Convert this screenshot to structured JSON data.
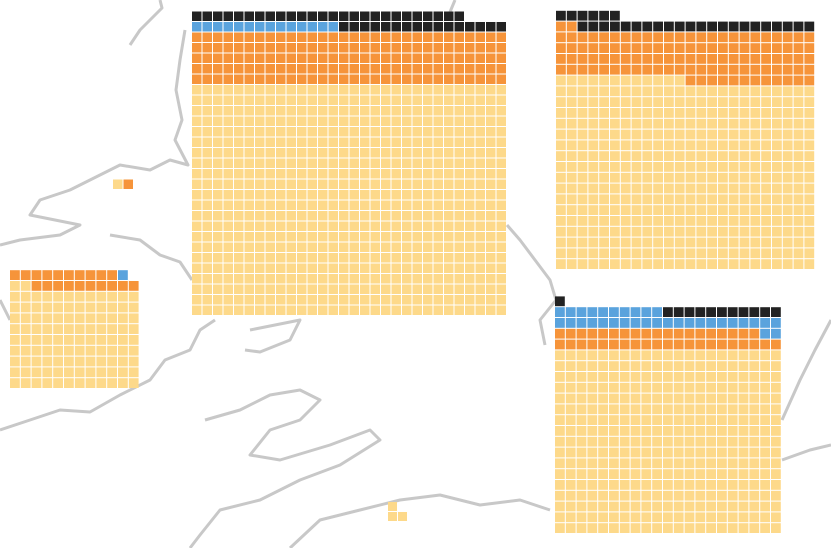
{
  "waffles": [
    {
      "counts": [
        660,
        150,
        14,
        42
      ],
      "colors": [
        "#fdd98a",
        "#f6943a",
        "#5aa3dd",
        "#222222"
      ]
    },
    {
      "counts": [
        420,
        110,
        0,
        28
      ],
      "colors": [
        "#fdd98a",
        "#f6943a",
        "#5aa3dd",
        "#222222"
      ]
    },
    {
      "counts": [
        110,
        20,
        1,
        0
      ],
      "colors": [
        "#fdd98a",
        "#f6943a",
        "#5aa3dd",
        "#222222"
      ]
    },
    {
      "counts": [
        357,
        40,
        33,
        12
      ],
      "colors": [
        "#fdd98a",
        "#f6943a",
        "#5aa3dd",
        "#222222"
      ]
    },
    {
      "counts": [
        1,
        1,
        0,
        0
      ],
      "colors": [
        "#fdd98a",
        "#f6943a",
        "#5aa3dd",
        "#222222"
      ]
    },
    {
      "counts": [
        3,
        0,
        0,
        0
      ],
      "colors": [
        "#fdd98a",
        "#f6943a",
        "#5aa3dd",
        "#222222"
      ]
    }
  ]
}
